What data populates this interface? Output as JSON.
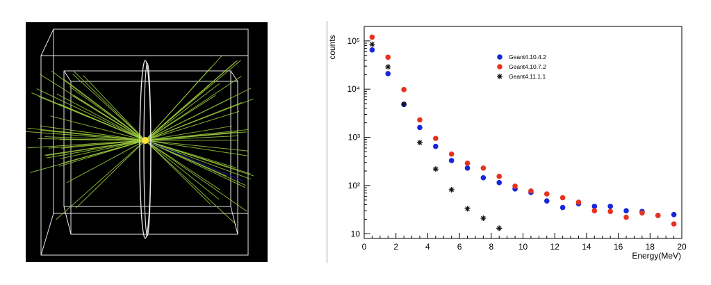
{
  "detector_view": {
    "background": "#000000",
    "track_color": "#9ccc3c",
    "secondary_track_color": "#1a1a8a",
    "frame_color": "#e8e8e8",
    "vertex_color": "#ffe23a"
  },
  "chart_data": {
    "type": "scatter",
    "title": "",
    "xlabel": "Energy(MeV)",
    "ylabel": "counts",
    "xlim": [
      0,
      20
    ],
    "ylim": [
      8,
      200000
    ],
    "yscale": "log",
    "x_ticks": [
      "0",
      "2",
      "4",
      "6",
      "8",
      "10",
      "12",
      "14",
      "16",
      "18",
      "20"
    ],
    "y_ticks": [
      {
        "value": 10,
        "label": "10"
      },
      {
        "value": 100,
        "label": "10²"
      },
      {
        "value": 1000,
        "label": "10³"
      },
      {
        "value": 10000,
        "label": "10⁴"
      },
      {
        "value": 100000,
        "label": "10⁵"
      }
    ],
    "legend_position": "top-right",
    "series": [
      {
        "name": "Geant4.10.4.2",
        "marker": "circle",
        "color": "#1428d8",
        "x": [
          0.5,
          1.5,
          2.5,
          3.5,
          4.5,
          5.5,
          6.5,
          7.5,
          8.5,
          9.5,
          10.5,
          11.5,
          12.5,
          13.5,
          14.5,
          15.5,
          16.5,
          17.5,
          18.5,
          19.5
        ],
        "y": [
          65000,
          21000,
          4800,
          1600,
          650,
          330,
          230,
          145,
          115,
          85,
          72,
          48,
          35,
          42,
          37,
          37,
          30,
          29,
          24,
          25
        ]
      },
      {
        "name": "Geant4.10.7.2",
        "marker": "circle",
        "color": "#e8321e",
        "x": [
          0.5,
          1.5,
          2.5,
          3.5,
          4.5,
          5.5,
          6.5,
          7.5,
          8.5,
          9.5,
          10.5,
          11.5,
          12.5,
          13.5,
          14.5,
          15.5,
          16.5,
          17.5,
          18.5,
          19.5
        ],
        "y": [
          120000,
          46000,
          9800,
          2300,
          950,
          450,
          290,
          230,
          155,
          97,
          77,
          67,
          56,
          45,
          30,
          29,
          22,
          27,
          24,
          16
        ]
      },
      {
        "name": "Geant4.11.1.1",
        "marker": "star",
        "color": "#111111",
        "x": [
          0.5,
          1.5,
          2.5,
          3.5,
          4.5,
          5.5,
          6.5,
          7.5,
          8.5
        ],
        "y": [
          85000,
          29000,
          4900,
          780,
          220,
          82,
          33,
          21,
          13
        ]
      }
    ]
  }
}
